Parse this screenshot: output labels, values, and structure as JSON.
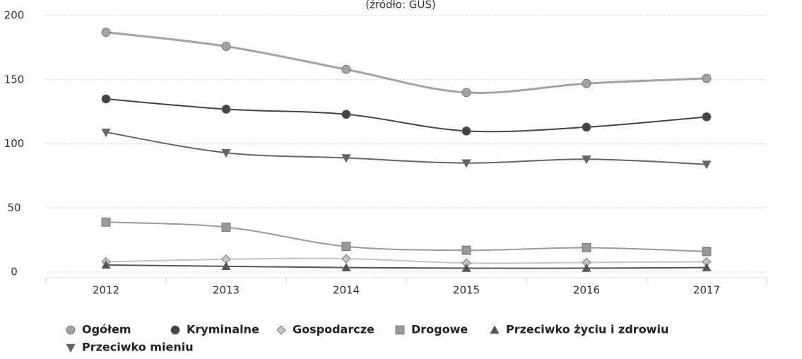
{
  "chart_data": {
    "type": "line",
    "subtitle": "(źródło: GUS)",
    "categories": [
      "2012",
      "2013",
      "2014",
      "2015",
      "2016",
      "2017"
    ],
    "series": [
      {
        "name": "Ogółem",
        "color": "#a3a3a3",
        "marker": "circle",
        "values": [
          187,
          176,
          158,
          140,
          147,
          151
        ]
      },
      {
        "name": "Kryminalne",
        "color": "#444444",
        "marker": "circle",
        "values": [
          135,
          127,
          123,
          110,
          113,
          121
        ]
      },
      {
        "name": "Gospodarcze",
        "color": "#c4c4c4",
        "marker": "diamond",
        "values": [
          8,
          10,
          10.5,
          7,
          7.5,
          8
        ]
      },
      {
        "name": "Drogowe",
        "color": "#9a9a9a",
        "marker": "square",
        "values": [
          39,
          35,
          20,
          17,
          19,
          16
        ]
      },
      {
        "name": "Przeciwko życiu i zdrowiu",
        "color": "#555555",
        "marker": "triangle",
        "values": [
          5.5,
          4.5,
          3.5,
          3,
          3,
          3.5
        ]
      },
      {
        "name": "Przeciwko mieniu",
        "color": "#666666",
        "marker": "triangle-down",
        "values": [
          109,
          93,
          89,
          85,
          88,
          84
        ]
      }
    ],
    "ylim": [
      0,
      200
    ],
    "yticks": [
      0,
      50,
      100,
      150,
      200
    ],
    "grid": true
  }
}
